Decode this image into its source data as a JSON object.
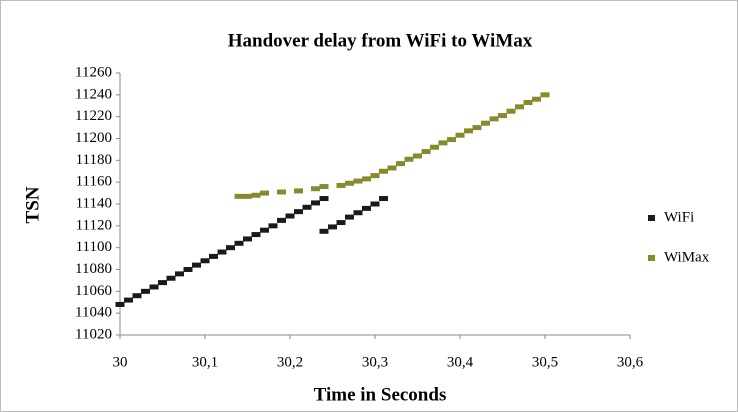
{
  "chart_data": {
    "type": "scatter",
    "title": "Handover delay from WiFi to WiMax",
    "x_label": "Time in Seconds",
    "y_label": "TSN",
    "xlim": [
      30,
      30.6
    ],
    "xticks": [
      30,
      {
        "value": 30.1,
        "label": "30,1"
      },
      {
        "value": 30.2,
        "label": "30,2"
      },
      {
        "value": 30.3,
        "label": "30,3"
      },
      {
        "value": 30.4,
        "label": "30,4"
      },
      {
        "value": 30.5,
        "label": "30,5"
      },
      {
        "value": 30.6,
        "label": "30,6"
      }
    ],
    "ylim": [
      11020,
      11260
    ],
    "yticks": [
      11020,
      11040,
      11060,
      11080,
      11100,
      11120,
      11140,
      11160,
      11180,
      11200,
      11220,
      11240,
      11260
    ],
    "grid": false,
    "legend": "right",
    "series": [
      {
        "name": "WiFi",
        "color": "#1a1a1a",
        "x": [
          30.0,
          30.01,
          30.02,
          30.03,
          30.04,
          30.05,
          30.06,
          30.07,
          30.08,
          30.09,
          30.1,
          30.11,
          30.12,
          30.13,
          30.14,
          30.15,
          30.16,
          30.17,
          30.18,
          30.19,
          30.2,
          30.21,
          30.22,
          30.23,
          30.24,
          30.24,
          30.25,
          30.26,
          30.27,
          30.28,
          30.29,
          30.3,
          30.31
        ],
        "values": [
          11048,
          11052,
          11056,
          11060,
          11064,
          11068,
          11072,
          11076,
          11080,
          11084,
          11088,
          11092,
          11096,
          11100,
          11104,
          11108,
          11112,
          11116,
          11120,
          11125,
          11129,
          11133,
          11137,
          11141,
          11145,
          11115,
          11119,
          11123,
          11128,
          11132,
          11136,
          11140,
          11145
        ]
      },
      {
        "name": "WiMax",
        "color": "#868a2c",
        "x": [
          30.14,
          30.15,
          30.16,
          30.17,
          30.19,
          30.21,
          30.23,
          30.24,
          30.26,
          30.27,
          30.28,
          30.29,
          30.3,
          30.31,
          30.32,
          30.33,
          30.34,
          30.35,
          30.36,
          30.37,
          30.38,
          30.39,
          30.4,
          30.41,
          30.42,
          30.43,
          30.44,
          30.45,
          30.46,
          30.47,
          30.48,
          30.49,
          30.5
        ],
        "values": [
          11147,
          11147,
          11148,
          11150,
          11151,
          11152,
          11154,
          11156,
          11157,
          11159,
          11161,
          11163,
          11166,
          11170,
          11173,
          11177,
          11181,
          11184,
          11188,
          11192,
          11196,
          11199,
          11203,
          11207,
          11210,
          11214,
          11218,
          11221,
          11225,
          11229,
          11233,
          11236,
          11240
        ]
      }
    ]
  }
}
